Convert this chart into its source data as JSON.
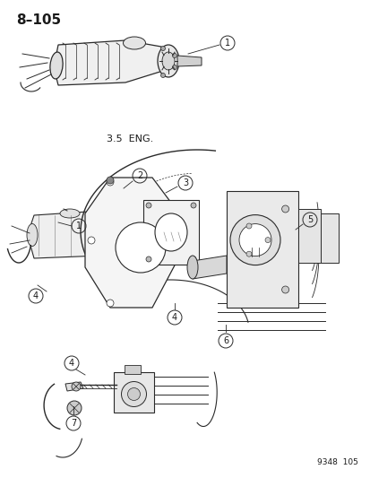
{
  "page_number": "8–105",
  "catalog_number": "9348  105",
  "label_35eng": "3.5  ENG.",
  "background_color": "#ffffff",
  "line_color": "#2a2a2a",
  "text_color": "#1a1a1a",
  "title_fontsize": 11,
  "label_fontsize": 8,
  "callout_fontsize": 7,
  "figsize": [
    4.14,
    5.33
  ],
  "dpi": 100
}
